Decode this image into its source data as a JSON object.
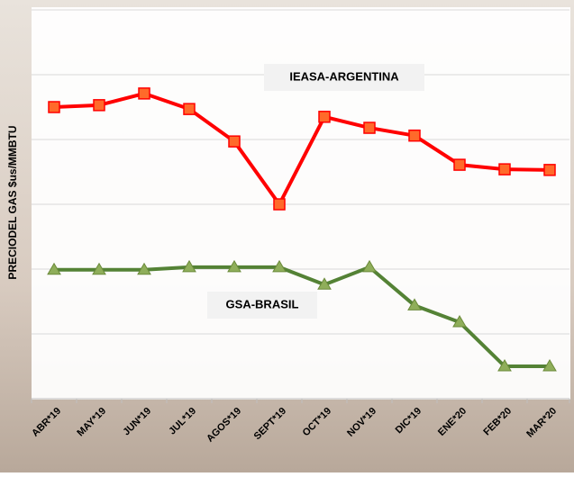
{
  "chart_data": {
    "type": "line",
    "y_label": "PRECIODEL GAS $us/MMBTU",
    "categories": [
      "ABR*19",
      "MAY*19",
      "JUN*19",
      "JUL*19",
      "AGOS*19",
      "SEPT*19",
      "OCT*19",
      "NOV*19",
      "DIC*19",
      "ENE*20",
      "FEB*20",
      "MAR*20"
    ],
    "series": [
      {
        "name": "IEASA-ARGENTINA",
        "color": "#ff0000",
        "marker": "square",
        "values": [
          4.5,
          4.53,
          4.71,
          4.47,
          3.97,
          3.0,
          4.35,
          4.18,
          4.06,
          3.61,
          3.54,
          3.53
        ]
      },
      {
        "name": "GSA-BRASIL",
        "color": "#548235",
        "marker": "triangle",
        "values": [
          1.99,
          1.99,
          1.99,
          2.03,
          2.03,
          2.03,
          1.76,
          2.03,
          1.44,
          1.18,
          0.5,
          0.5
        ]
      }
    ],
    "ylim": [
      0,
      6
    ],
    "yticks": [
      0,
      1,
      2,
      3,
      4,
      5,
      6
    ],
    "grid": true
  }
}
